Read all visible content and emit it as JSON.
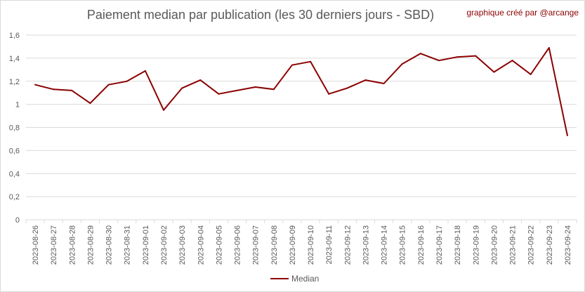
{
  "chart_data": {
    "type": "line",
    "title": "Paiement median par publication (les 30 derniers jours - SBD)",
    "credit": "graphique créé par @arcange",
    "xlabel": "",
    "ylabel": "",
    "ylim": [
      0,
      1.6
    ],
    "yticks": [
      "0",
      "0,2",
      "0,4",
      "0,6",
      "0,8",
      "1",
      "1,2",
      "1,4",
      "1,6"
    ],
    "grid": true,
    "legend_position": "bottom",
    "color": "#8b0000",
    "categories": [
      "2023-08-26",
      "2023-08-27",
      "2023-08-28",
      "2023-08-29",
      "2023-08-30",
      "2023-08-31",
      "2023-09-01",
      "2023-09-02",
      "2023-09-03",
      "2023-09-04",
      "2023-09-05",
      "2023-09-06",
      "2023-09-07",
      "2023-09-08",
      "2023-09-09",
      "2023-09-10",
      "2023-09-11",
      "2023-09-12",
      "2023-09-13",
      "2023-09-14",
      "2023-09-15",
      "2023-09-16",
      "2023-09-17",
      "2023-09-18",
      "2023-09-19",
      "2023-09-20",
      "2023-09-21",
      "2023-09-22",
      "2023-09-23",
      "2023-09-24"
    ],
    "series": [
      {
        "name": "Median",
        "values": [
          1.17,
          1.13,
          1.12,
          1.01,
          1.17,
          1.2,
          1.29,
          0.95,
          1.14,
          1.21,
          1.09,
          1.12,
          1.15,
          1.13,
          1.34,
          1.37,
          1.09,
          1.14,
          1.21,
          1.18,
          1.35,
          1.44,
          1.38,
          1.41,
          1.42,
          1.28,
          1.38,
          1.26,
          1.49,
          0.73
        ]
      }
    ]
  }
}
